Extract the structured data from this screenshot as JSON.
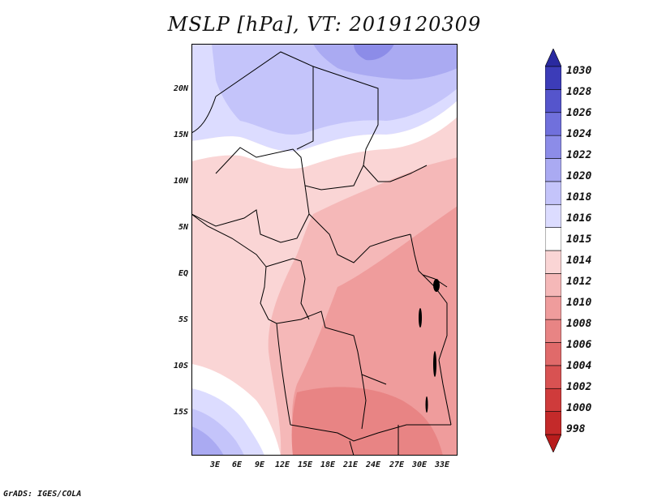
{
  "title": "MSLP [hPa], VT: 2019120309",
  "credit": "GrADS: IGES/COLA",
  "lat_ticks": [
    "20N",
    "15N",
    "10N",
    "5N",
    "EQ",
    "5S",
    "10S",
    "15S"
  ],
  "lon_ticks": [
    "3E",
    "6E",
    "9E",
    "12E",
    "15E",
    "18E",
    "21E",
    "24E",
    "27E",
    "30E",
    "33E"
  ],
  "colorbar": {
    "levels": [
      "998",
      "1000",
      "1002",
      "1004",
      "1006",
      "1008",
      "1010",
      "1012",
      "1014",
      "1015",
      "1016",
      "1018",
      "1020",
      "1022",
      "1024",
      "1026",
      "1028",
      "1030"
    ],
    "colors": [
      "#b81c1c",
      "#c42a2a",
      "#cf3b3b",
      "#d85252",
      "#e06a6a",
      "#e88484",
      "#ef9c9c",
      "#f5b8b8",
      "#fad5d5",
      "#ffffff",
      "#dcdcff",
      "#c4c4fa",
      "#aaaaf2",
      "#8c8ce8",
      "#7070dc",
      "#5555cc",
      "#3c3cb8",
      "#2a2aa0"
    ]
  },
  "map_fill_colors": {
    "very_low": "#ef9c9c",
    "low": "#f5b8b8",
    "mid": "#fad5d5",
    "neutral": "#ffffff",
    "high1": "#dcdcff",
    "high2": "#c4c4fa",
    "high3": "#aaaaf2",
    "high4": "#8c8ce8"
  }
}
